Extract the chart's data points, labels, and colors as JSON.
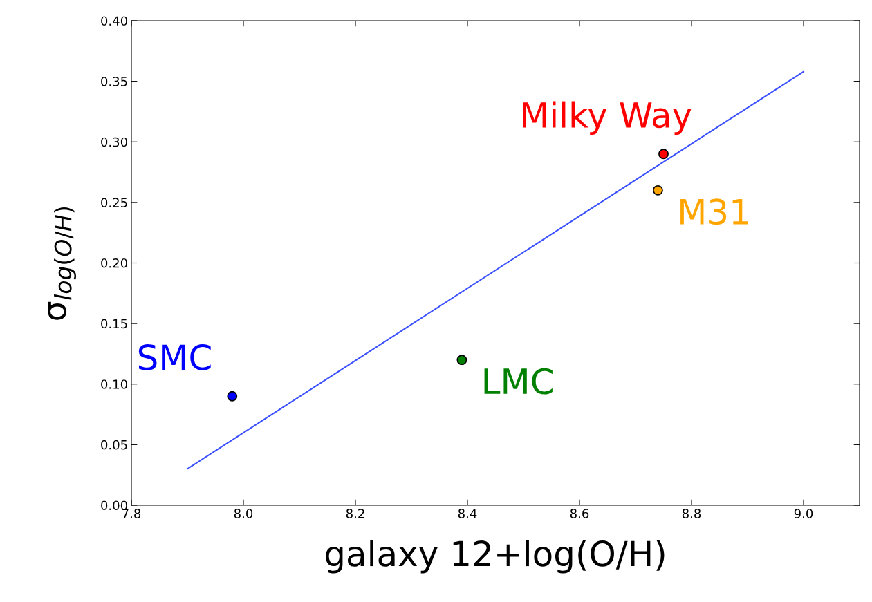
{
  "chart_data": {
    "type": "scatter",
    "xlabel": "galaxy 12+log(O/H)",
    "ylabel": "σ$_{log(O/H)}$",
    "xlim": [
      7.8,
      9.1
    ],
    "xticks": [
      7.8,
      {
        "value": 8.0,
        "label": "8.0"
      },
      8.2,
      8.4,
      8.6,
      8.8,
      {
        "value": 9.0,
        "label": "9.0"
      }
    ],
    "ylim": [
      0.0,
      0.4
    ],
    "yticks": [
      {
        "value": 0.0,
        "label": "0.00"
      },
      0.05,
      {
        "value": 0.1,
        "label": "0.10"
      },
      0.15,
      {
        "value": 0.2,
        "label": "0.20"
      },
      0.25,
      {
        "value": 0.3,
        "label": "0.30"
      },
      0.35,
      {
        "value": 0.4,
        "label": "0.40"
      }
    ],
    "grid": false,
    "legend": false,
    "marker": "circle",
    "series": [
      {
        "name": "SMC",
        "color": "#0000ff",
        "x": [
          7.98
        ],
        "values": [
          0.09
        ]
      },
      {
        "name": "LMC",
        "color": "#008000",
        "x": [
          8.39
        ],
        "values": [
          0.12
        ]
      },
      {
        "name": "Milky Way",
        "color": "#ff0000",
        "x": [
          8.75
        ],
        "values": [
          0.29
        ]
      },
      {
        "name": "M31",
        "color": "#ffa500",
        "x": [
          8.74
        ],
        "values": [
          0.26
        ]
      },
      {
        "type": "line",
        "color": "#3a50ff",
        "x": [
          7.9,
          9.0
        ],
        "values": [
          0.03,
          0.358
        ],
        "marker": "none",
        "line_style": "solid"
      }
    ]
  }
}
